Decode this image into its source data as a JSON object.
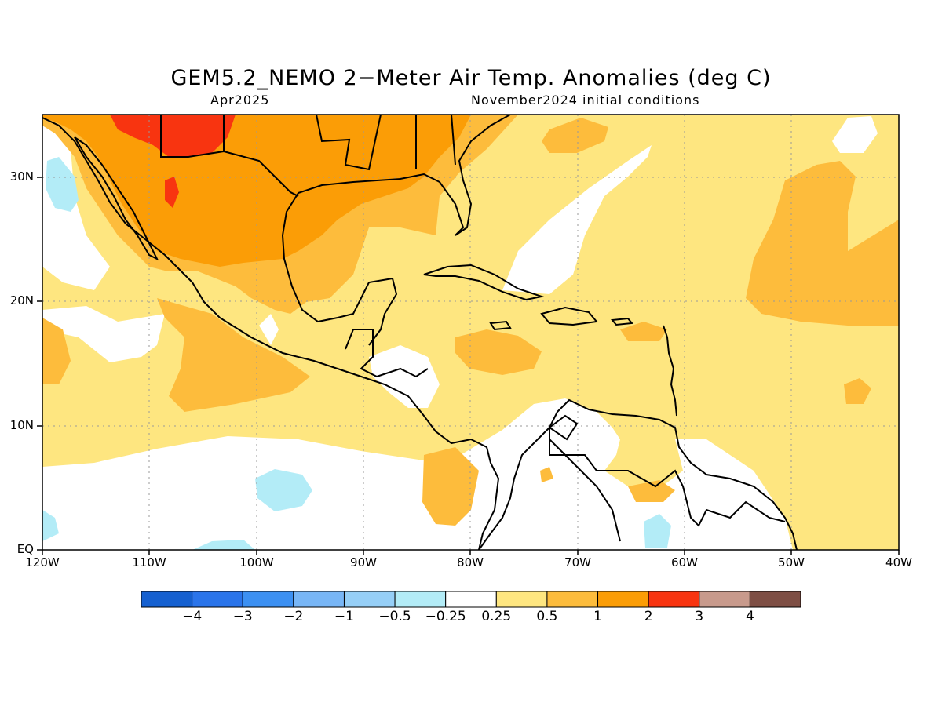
{
  "title": "GEM5.2_NEMO 2−Meter Air Temp. Anomalies (deg C)",
  "subtitle_left": "Apr2025",
  "subtitle_right": "November2024 initial conditions",
  "lat_labels": [
    "30N",
    "20N",
    "10N",
    "EQ"
  ],
  "lon_labels": [
    "120W",
    "110W",
    "100W",
    "90W",
    "80W",
    "70W",
    "60W",
    "50W",
    "40W"
  ],
  "colorbar": {
    "colors": [
      "#1560d0",
      "#2a74ea",
      "#3c90f2",
      "#78b6f6",
      "#96cff7",
      "#b3ecf7",
      "#ffffff",
      "#fee680",
      "#fdbc3c",
      "#fb9d06",
      "#f83410",
      "#c89a8c",
      "#7e4e44"
    ],
    "labels": [
      "−4",
      "−3",
      "−2",
      "−1",
      "−0.5",
      "−0.25",
      "0.25",
      "0.5",
      "1",
      "2",
      "3",
      "4"
    ]
  }
}
